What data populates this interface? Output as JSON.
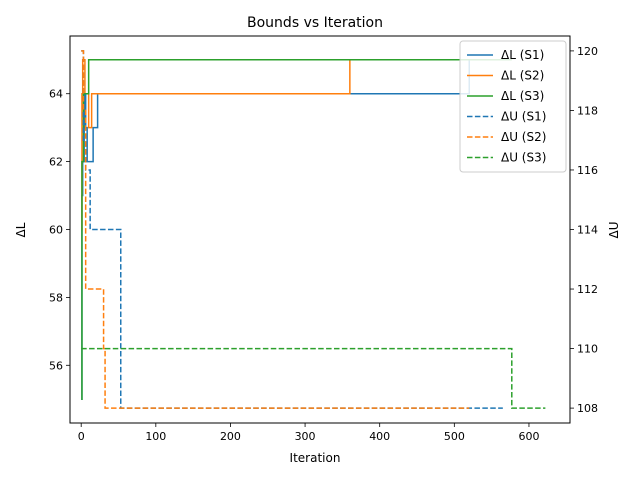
{
  "chart_data": {
    "type": "line",
    "title": "Bounds vs Iteration",
    "xlabel": "Iteration",
    "ylabel_left": "ΔL",
    "ylabel_right": "ΔU",
    "xlim": [
      -15,
      655
    ],
    "ylim_left": [
      54.3,
      65.7
    ],
    "ylim_right": [
      107.5,
      120.5
    ],
    "x_ticks": [
      0,
      100,
      200,
      300,
      400,
      500,
      600
    ],
    "y_ticks_left": [
      56,
      58,
      60,
      62,
      64
    ],
    "y_ticks_right": [
      108,
      110,
      112,
      114,
      116,
      118,
      120
    ],
    "grid": false,
    "legend_position": "top-right",
    "series": [
      {
        "name": "ΔL (S1)",
        "axis": "left",
        "color": "#1f77b4",
        "dash": "solid",
        "points": [
          [
            0,
            55
          ],
          [
            1,
            55
          ],
          [
            1,
            61
          ],
          [
            2,
            61
          ],
          [
            2,
            62
          ],
          [
            4,
            62
          ],
          [
            4,
            64
          ],
          [
            6,
            64
          ],
          [
            6,
            63
          ],
          [
            8,
            63
          ],
          [
            8,
            62
          ],
          [
            16,
            62
          ],
          [
            16,
            63
          ],
          [
            22,
            63
          ],
          [
            22,
            64
          ],
          [
            520,
            64
          ],
          [
            520,
            65
          ]
        ]
      },
      {
        "name": "ΔL (S2)",
        "axis": "left",
        "color": "#ff7f0e",
        "dash": "solid",
        "points": [
          [
            0,
            60
          ],
          [
            1,
            60
          ],
          [
            1,
            64
          ],
          [
            2,
            64
          ],
          [
            2,
            65
          ],
          [
            5,
            65
          ],
          [
            5,
            64
          ],
          [
            10,
            64
          ],
          [
            10,
            63
          ],
          [
            14,
            63
          ],
          [
            14,
            64
          ],
          [
            360,
            64
          ],
          [
            360,
            65
          ]
        ]
      },
      {
        "name": "ΔL (S3)",
        "axis": "left",
        "color": "#2ca02c",
        "dash": "solid",
        "points": [
          [
            0,
            55
          ],
          [
            1,
            55
          ],
          [
            1,
            62
          ],
          [
            3,
            62
          ],
          [
            3,
            64
          ],
          [
            6,
            64
          ],
          [
            6,
            64
          ],
          [
            10,
            64
          ],
          [
            10,
            65
          ],
          [
            577,
            65
          ]
        ]
      },
      {
        "name": "ΔU (S1)",
        "axis": "right",
        "color": "#1f77b4",
        "dash": "dashed",
        "points": [
          [
            0,
            120
          ],
          [
            3,
            120
          ],
          [
            3,
            117
          ],
          [
            6,
            117
          ],
          [
            6,
            116
          ],
          [
            12,
            116
          ],
          [
            12,
            114
          ],
          [
            53,
            114
          ],
          [
            53,
            108
          ],
          [
            565,
            108
          ]
        ]
      },
      {
        "name": "ΔU (S2)",
        "axis": "right",
        "color": "#ff7f0e",
        "dash": "dashed",
        "points": [
          [
            0,
            120
          ],
          [
            3,
            120
          ],
          [
            3,
            118
          ],
          [
            6,
            118
          ],
          [
            6,
            112
          ],
          [
            30,
            112
          ],
          [
            30,
            110
          ],
          [
            32,
            110
          ],
          [
            32,
            108
          ],
          [
            520,
            108
          ]
        ]
      },
      {
        "name": "ΔU (S3)",
        "axis": "right",
        "color": "#2ca02c",
        "dash": "dashed",
        "points": [
          [
            0,
            110
          ],
          [
            577,
            110
          ],
          [
            577,
            108
          ],
          [
            622,
            108
          ]
        ]
      }
    ]
  }
}
